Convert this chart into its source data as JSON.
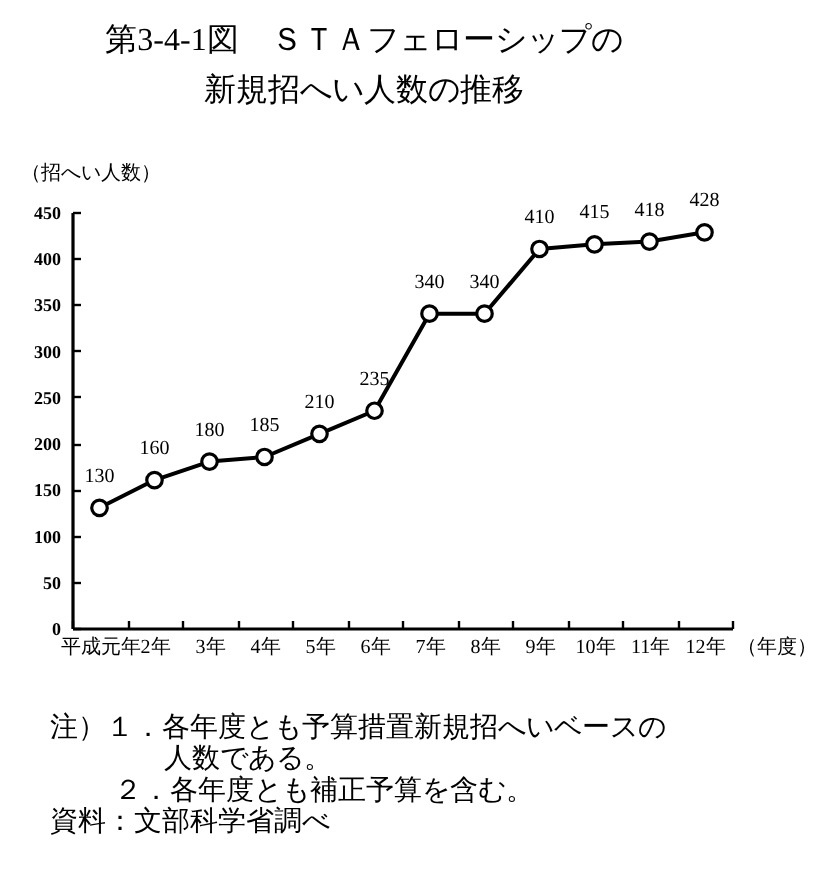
{
  "chart_data": {
    "type": "line",
    "title": "第3-4-1図　ＳＴＡフェローシップの新規招へい人数の推移",
    "ylabel": "（招へい人数）",
    "xlabel": "（年度）",
    "categories": [
      "平成元年",
      "2年",
      "3年",
      "4年",
      "5年",
      "6年",
      "7年",
      "8年",
      "9年",
      "10年",
      "11年",
      "12年"
    ],
    "series": [
      {
        "color": "#000000",
        "values": [
          130,
          160,
          180,
          185,
          210,
          235,
          340,
          340,
          410,
          415,
          418,
          428
        ]
      }
    ],
    "ylim": [
      0,
      450
    ],
    "yticks": [
      0,
      50,
      100,
      150,
      200,
      250,
      300,
      350,
      400,
      450
    ],
    "grid": false,
    "marker": "circle",
    "line_style": "solid",
    "data_labels": true,
    "annotations": [
      "注）１．各年度とも予算措置新規招へいベースの人数である。",
      "２．各年度とも補正予算を含む。",
      "資料：文部科学省調べ"
    ]
  }
}
